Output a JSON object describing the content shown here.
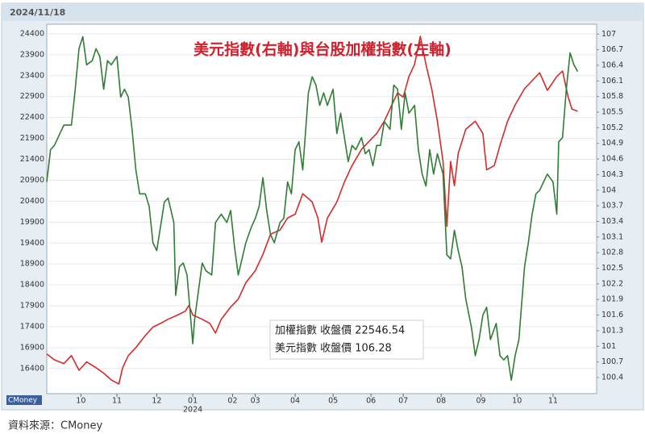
{
  "chart_data": {
    "type": "line",
    "title": "美元指數(右軸)與台股加權指數(左軸)",
    "date": "2024/11/18",
    "watermark": "CMoney",
    "source": "資料來源：CMoney",
    "annotations": [
      {
        "text": "加權指數 收盤價 22546.54",
        "color": "#d62a2a"
      },
      {
        "text": "美元指數 收盤價 106.28",
        "color": "#2e7d32"
      }
    ],
    "xlim": [
      0,
      290
    ],
    "xticks": [
      {
        "value": 18,
        "label": "10"
      },
      {
        "value": 37,
        "label": "11"
      },
      {
        "value": 58,
        "label": "12"
      },
      {
        "value": 77,
        "label": "01",
        "sublabel": "2024"
      },
      {
        "value": 98,
        "label": "02"
      },
      {
        "value": 110,
        "label": "03"
      },
      {
        "value": 131,
        "label": "04"
      },
      {
        "value": 151,
        "label": "05"
      },
      {
        "value": 171,
        "label": "06"
      },
      {
        "value": 188,
        "label": "07"
      },
      {
        "value": 208,
        "label": "08"
      },
      {
        "value": 229,
        "label": "09"
      },
      {
        "value": 248,
        "label": "10"
      },
      {
        "value": 267,
        "label": "11"
      }
    ],
    "ylim": [
      15800,
      24630
    ],
    "yticks": [
      16400,
      16900,
      17400,
      17900,
      18400,
      18900,
      19400,
      19900,
      20400,
      20900,
      21400,
      21900,
      22400,
      22900,
      23400,
      23900,
      24400
    ],
    "y2lim": [
      100.09,
      107.19
    ],
    "y2ticks": [
      100.4,
      100.7,
      101,
      101.3,
      101.6,
      101.9,
      102.2,
      102.5,
      102.8,
      103.1,
      103.4,
      103.7,
      104,
      104.3,
      104.6,
      104.9,
      105.2,
      105.5,
      105.8,
      106.1,
      106.4,
      106.7,
      107
    ],
    "series": [
      {
        "color": "#d62a2a",
        "axis": "y",
        "x": [
          0,
          4,
          9,
          13,
          17,
          21,
          26,
          30,
          34,
          38,
          40,
          43,
          47,
          52,
          56,
          60,
          64,
          69,
          73,
          75,
          77,
          82,
          86,
          89,
          92,
          97,
          101,
          105,
          110,
          114,
          118,
          123,
          127,
          131,
          135,
          140,
          143,
          145,
          148,
          153,
          157,
          161,
          166,
          170,
          174,
          178,
          183,
          185,
          188,
          191,
          194,
          197,
          200,
          203,
          206,
          209,
          211,
          213,
          215,
          217,
          221,
          226,
          230,
          232,
          236,
          239,
          243,
          247,
          252,
          256,
          260,
          264,
          269,
          272,
          275,
          277,
          280
        ],
        "values": [
          16750,
          16610,
          16520,
          16710,
          16360,
          16560,
          16420,
          16290,
          16130,
          16030,
          16420,
          16710,
          16900,
          17190,
          17390,
          17480,
          17580,
          17680,
          17770,
          17910,
          17680,
          17580,
          17480,
          17250,
          17580,
          17870,
          18060,
          18450,
          18740,
          19130,
          19610,
          19710,
          20000,
          20090,
          20580,
          20380,
          20000,
          19420,
          20000,
          20380,
          20860,
          21250,
          21640,
          21830,
          22020,
          22310,
          22800,
          22990,
          22890,
          23380,
          23670,
          24340,
          23670,
          23090,
          22310,
          21350,
          19800,
          21350,
          20770,
          21540,
          22120,
          22310,
          22020,
          21150,
          21250,
          21730,
          22310,
          22700,
          23090,
          23280,
          23470,
          23050,
          23380,
          23510,
          22890,
          22600,
          22550
        ]
      },
      {
        "color": "#2e7d32",
        "axis": "y2",
        "x": [
          0,
          2,
          4,
          9,
          13,
          15,
          17,
          19,
          21,
          24,
          26,
          28,
          30,
          32,
          34,
          37,
          39,
          41,
          43,
          45,
          47,
          49,
          52,
          54,
          56,
          58,
          60,
          62,
          64,
          67,
          68,
          70,
          72,
          74,
          77,
          78,
          80,
          82,
          84,
          87,
          89,
          92,
          95,
          97,
          99,
          101,
          103,
          105,
          108,
          110,
          112,
          114,
          116,
          118,
          120,
          123,
          125,
          127,
          129,
          131,
          133,
          135,
          138,
          140,
          142,
          144,
          146,
          148,
          151,
          153,
          155,
          157,
          159,
          161,
          163,
          166,
          168,
          170,
          172,
          174,
          176,
          178,
          181,
          183,
          185,
          187,
          189,
          191,
          194,
          196,
          198,
          200,
          202,
          204,
          206,
          209,
          211,
          213,
          215,
          217,
          219,
          221,
          224,
          226,
          228,
          230,
          232,
          234,
          237,
          239,
          241,
          243,
          245,
          247,
          249,
          252,
          254,
          256,
          258,
          260,
          262,
          264,
          267,
          269,
          270,
          272,
          274,
          276,
          278,
          280
        ],
        "values": [
          104.16,
          104.78,
          104.86,
          105.25,
          105.25,
          105.94,
          106.72,
          106.95,
          106.41,
          106.49,
          106.72,
          106.57,
          105.94,
          106.49,
          106.41,
          106.57,
          105.79,
          105.94,
          105.79,
          105.17,
          104.39,
          103.93,
          103.93,
          103.69,
          102.99,
          102.84,
          103.3,
          103.77,
          103.85,
          103.38,
          101.98,
          102.53,
          102.6,
          102.37,
          101.05,
          101.52,
          102.06,
          102.6,
          102.45,
          102.37,
          103.38,
          103.54,
          103.38,
          103.61,
          102.92,
          102.37,
          102.68,
          102.99,
          103.3,
          103.46,
          103.69,
          104.24,
          103.61,
          103.15,
          102.99,
          103.38,
          103.46,
          104.16,
          103.93,
          104.78,
          104.93,
          104.39,
          105.87,
          106.18,
          106.02,
          105.63,
          105.87,
          105.63,
          105.94,
          105.09,
          105.48,
          105.01,
          104.55,
          104.86,
          104.78,
          105.01,
          104.7,
          104.78,
          104.47,
          104.86,
          104.86,
          105.32,
          105.17,
          106.02,
          105.94,
          105.17,
          105.87,
          105.48,
          105.63,
          104.78,
          104.31,
          104.08,
          104.78,
          104.31,
          104.7,
          104.31,
          102.76,
          102.68,
          103.23,
          102.84,
          102.53,
          101.91,
          101.36,
          100.82,
          101.13,
          101.6,
          101.75,
          101.13,
          101.44,
          100.82,
          100.74,
          100.82,
          100.35,
          100.82,
          101.13,
          102.53,
          102.99,
          103.54,
          103.93,
          104,
          104.16,
          104.31,
          104.16,
          103.54,
          104.93,
          105.01,
          105.94,
          106.64,
          106.41,
          106.28
        ]
      }
    ]
  }
}
